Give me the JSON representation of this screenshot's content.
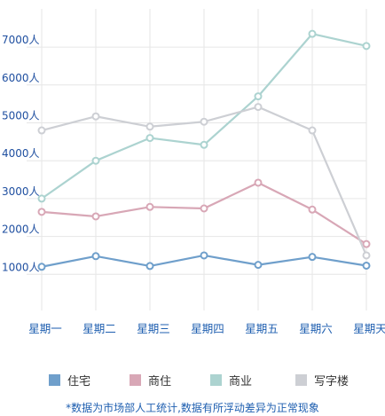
{
  "chart_data": {
    "type": "line",
    "categories": [
      "星期一",
      "星期二",
      "星期三",
      "星期四",
      "星期五",
      "星期六",
      "星期天"
    ],
    "y_ticks": [
      "1000人",
      "2000人",
      "3000人",
      "4000人",
      "5000人",
      "6000人",
      "7000人"
    ],
    "y_tick_values": [
      1000,
      2000,
      3000,
      4000,
      5000,
      6000,
      7000
    ],
    "ylim": [
      0,
      8000
    ],
    "grid": true,
    "legend_position": "bottom",
    "series": [
      {
        "name": "住宅",
        "color": "#6f9fcb",
        "values": [
          1200,
          1480,
          1220,
          1500,
          1250,
          1460,
          1230
        ]
      },
      {
        "name": "商住",
        "color": "#d8a7b6",
        "values": [
          2650,
          2530,
          2780,
          2740,
          3420,
          2710,
          1800
        ]
      },
      {
        "name": "商业",
        "color": "#acd3d0",
        "values": [
          3000,
          4000,
          4600,
          4420,
          5700,
          7350,
          7030
        ]
      },
      {
        "name": "写字楼",
        "color": "#cdcfd4",
        "values": [
          4800,
          5170,
          4900,
          5030,
          5420,
          4800,
          1500
        ]
      }
    ],
    "footnote": "*数据为市场部人工统计,数据有所浮动差异为正常现象"
  }
}
